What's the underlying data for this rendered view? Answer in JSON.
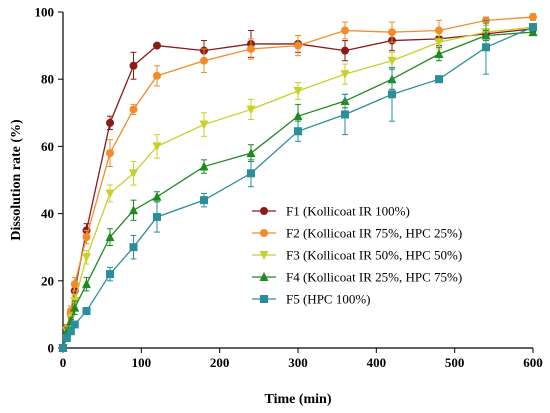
{
  "chart_data": {
    "type": "line",
    "title": "",
    "xlabel": "Time (min)",
    "ylabel": "Dissolution rate (%)",
    "xlim": [
      0,
      600
    ],
    "ylim": [
      0,
      100
    ],
    "xticks": [
      0,
      100,
      200,
      300,
      400,
      500,
      600
    ],
    "yticks": [
      0,
      20,
      40,
      60,
      80,
      100
    ],
    "grid": false,
    "legend_position": "center-right",
    "x": [
      0,
      5,
      10,
      15,
      30,
      60,
      90,
      120,
      180,
      240,
      300,
      360,
      420,
      480,
      540,
      600
    ],
    "series": [
      {
        "name": "F1 (Kollicoat IR 100%)",
        "color": "#8B1A1A",
        "marker": "circle",
        "values": [
          0,
          6,
          10,
          17,
          35,
          67,
          84,
          90,
          88.5,
          90.5,
          90.5,
          88.5,
          91.5,
          92,
          93.5,
          95
        ],
        "errors": [
          0,
          1,
          1.5,
          2,
          2,
          2,
          4,
          0.5,
          3,
          4,
          2.5,
          3,
          3,
          2,
          1,
          1
        ]
      },
      {
        "name": "F2 (Kollicoat IR 75%, HPC 25%)",
        "color": "#F28C28",
        "marker": "circle",
        "values": [
          0,
          6,
          11,
          19,
          33,
          58,
          71,
          81,
          85.5,
          89,
          90,
          94.5,
          94,
          94.5,
          97.5,
          98.5
        ],
        "errors": [
          0,
          1,
          1.5,
          2,
          2,
          4,
          1.5,
          3,
          3.5,
          3,
          3,
          2.5,
          3,
          3,
          1,
          1
        ]
      },
      {
        "name": "F3 (Kollicoat IR 50%, HPC 50%)",
        "color": "#C8D02A",
        "marker": "triangle-down",
        "values": [
          0,
          5,
          9,
          14,
          27,
          46,
          52,
          60,
          66.5,
          71,
          76.5,
          81.5,
          85.5,
          91,
          94,
          95.5
        ],
        "errors": [
          0,
          1,
          1,
          2,
          2,
          2.5,
          3.5,
          3.5,
          3.5,
          3,
          2.5,
          3,
          2.5,
          2,
          2,
          1
        ]
      },
      {
        "name": "F4 (Kollicoat IR 25%, HPC 75%)",
        "color": "#1F8A1F",
        "marker": "triangle-up",
        "values": [
          0,
          5,
          8,
          12,
          19,
          33,
          41,
          45,
          54,
          58,
          69,
          73.5,
          80,
          87.5,
          93,
          94
        ],
        "errors": [
          0,
          1,
          1,
          2,
          2,
          2.5,
          3,
          1.5,
          2,
          2.5,
          3.5,
          2,
          3,
          2,
          1.5,
          1
        ]
      },
      {
        "name": "F5 (HPC 100%)",
        "color": "#2A8F9A",
        "marker": "square",
        "values": [
          0,
          3,
          5,
          7,
          11,
          22,
          30,
          39,
          44,
          52,
          64.5,
          69.5,
          75.5,
          80,
          89.5,
          95.5
        ],
        "errors": [
          0,
          1,
          1,
          1,
          1,
          2,
          3.5,
          4.5,
          2,
          4,
          3,
          6,
          8,
          1,
          8,
          1
        ]
      }
    ]
  }
}
